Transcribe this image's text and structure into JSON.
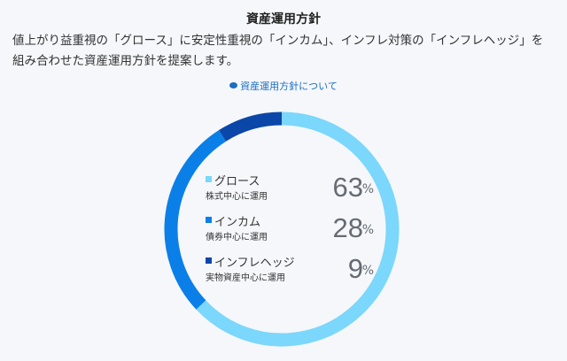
{
  "title": "資産運用方針",
  "description": "値上がり益重視の「グロース」に安定性重視の「インカム」、インフレ対策の「インフレヘッジ」を組み合わせた資産運用方針を提案します。",
  "link_label": "資産運用方針について",
  "colors": {
    "growth": "#7bd7fb",
    "income": "#0a7fe8",
    "hedge": "#0b47a8"
  },
  "allocation": [
    {
      "name": "グロース",
      "subtitle": "株式中心に運用",
      "value": 63,
      "unit": "%",
      "color_key": "growth"
    },
    {
      "name": "インカム",
      "subtitle": "債券中心に運用",
      "value": 28,
      "unit": "%",
      "color_key": "income"
    },
    {
      "name": "インフレヘッジ",
      "subtitle": "実物資産中心に運用",
      "value": 9,
      "unit": "%",
      "color_key": "hedge"
    }
  ]
}
